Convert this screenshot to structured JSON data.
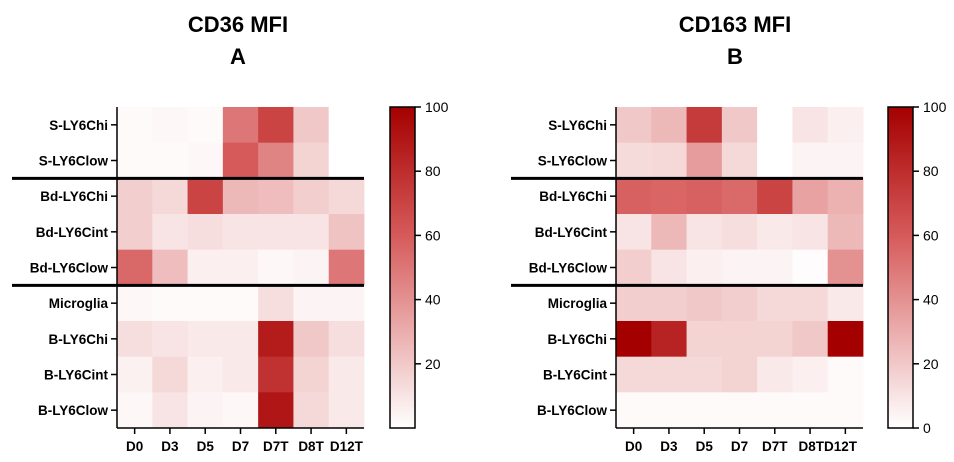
{
  "chart_data": [
    {
      "type": "heatmap",
      "title": "CD36 MFI",
      "subtitle": "A",
      "columns": [
        "D0",
        "D3",
        "D5",
        "D7",
        "D7T",
        "D8T",
        "D12T"
      ],
      "rows": [
        "S-LY6Chi",
        "S-LY6Clow",
        "Bd-LY6Chi",
        "Bd-LY6Cint",
        "Bd-LY6Clow",
        "Microglia",
        "B-LY6Chi",
        "B-LY6Cint",
        "B-LY6Clow"
      ],
      "values": [
        [
          2,
          3,
          2,
          50,
          70,
          20,
          0
        ],
        [
          2,
          2,
          3,
          60,
          45,
          16,
          0
        ],
        [
          18,
          14,
          70,
          26,
          24,
          18,
          14
        ],
        [
          18,
          10,
          12,
          10,
          10,
          10,
          22
        ],
        [
          55,
          24,
          6,
          6,
          3,
          4,
          50
        ],
        [
          3,
          2,
          2,
          2,
          12,
          4,
          4
        ],
        [
          12,
          10,
          8,
          8,
          88,
          20,
          12
        ],
        [
          5,
          14,
          6,
          8,
          78,
          16,
          8
        ],
        [
          3,
          10,
          4,
          3,
          90,
          14,
          8
        ]
      ],
      "group_separators_after_row": [
        1,
        4
      ],
      "colorbar": {
        "min": 0,
        "max": 100,
        "ticks": [
          20,
          40,
          60,
          80,
          100
        ],
        "color_low": "#ffffff",
        "color_high": "#a50000"
      }
    },
    {
      "type": "heatmap",
      "title": "CD163 MFI",
      "subtitle": "B",
      "columns": [
        "D0",
        "D3",
        "D5",
        "D7",
        "D7T",
        "D8TD12T"
      ],
      "rows": [
        "S-LY6Chi",
        "S-LY6Clow",
        "Bd-LY6Chi",
        "Bd-LY6Cint",
        "Bd-LY6Clow",
        "Microglia",
        "B-LY6Chi",
        "B-LY6Cint",
        "B-LY6Clow"
      ],
      "cell_columns": 7,
      "values": [
        [
          20,
          26,
          74,
          20,
          0,
          10,
          6
        ],
        [
          13,
          14,
          36,
          14,
          0,
          4,
          4
        ],
        [
          58,
          56,
          58,
          54,
          70,
          34,
          28
        ],
        [
          10,
          26,
          10,
          12,
          8,
          10,
          26
        ],
        [
          18,
          10,
          6,
          4,
          4,
          1,
          40
        ],
        [
          18,
          18,
          20,
          18,
          14,
          14,
          8
        ],
        [
          100,
          85,
          16,
          16,
          16,
          20,
          100
        ],
        [
          14,
          14,
          14,
          16,
          8,
          6,
          2
        ],
        [
          2,
          2,
          2,
          2,
          2,
          2,
          2
        ]
      ],
      "group_separators_after_row": [
        1,
        4
      ],
      "colorbar": {
        "min": 0,
        "max": 100,
        "ticks": [
          0,
          20,
          40,
          60,
          80,
          100
        ],
        "color_low": "#ffffff",
        "color_high": "#a50000"
      }
    }
  ]
}
